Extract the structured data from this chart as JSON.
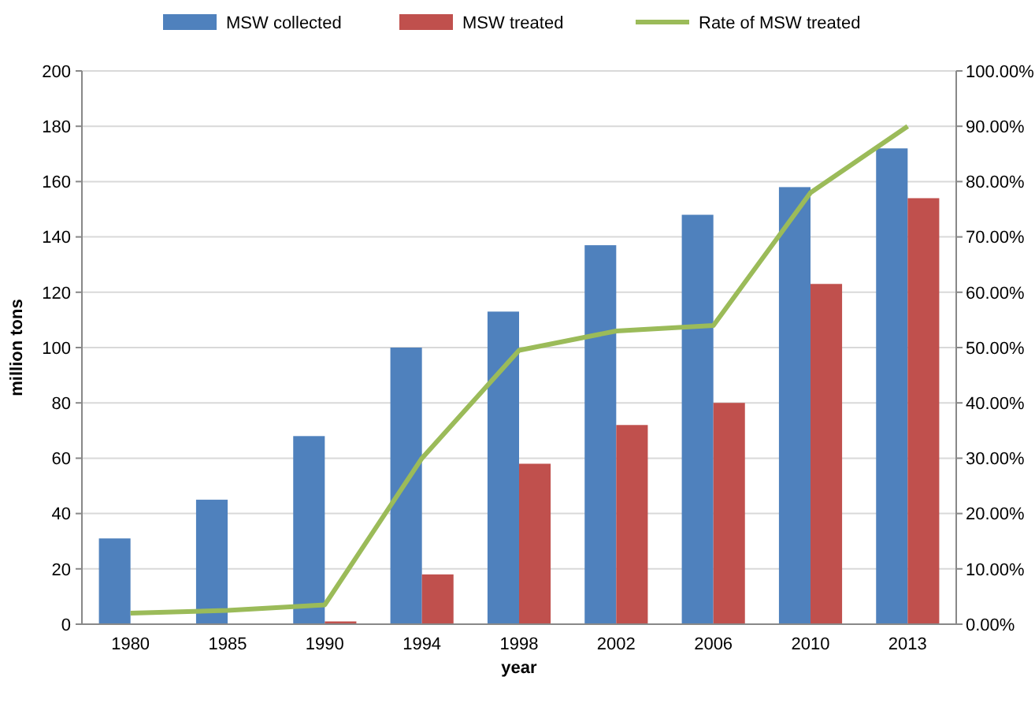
{
  "chart_data": {
    "type": "bar",
    "xlabel": "year",
    "ylabel": "million tons",
    "categories": [
      "1980",
      "1985",
      "1990",
      "1994",
      "1998",
      "2002",
      "2006",
      "2010",
      "2013"
    ],
    "series": [
      {
        "name": "MSW collected",
        "color": "#4f81bd",
        "values": [
          31,
          45,
          68,
          100,
          113,
          137,
          148,
          158,
          172
        ]
      },
      {
        "name": "MSW treated",
        "color": "#c0504d",
        "values": [
          null,
          null,
          1,
          18,
          58,
          72,
          80,
          123,
          154
        ]
      },
      {
        "name": "Rate of MSW treated",
        "type": "line",
        "axis": "y2",
        "color": "#9bbb59",
        "values": [
          2,
          2.5,
          3.5,
          30,
          49.5,
          53,
          54,
          78,
          90
        ]
      }
    ],
    "ylim": [
      0,
      200
    ],
    "yticks": [
      0,
      20,
      40,
      60,
      80,
      100,
      120,
      140,
      160,
      180,
      200
    ],
    "y2lim": [
      0,
      100
    ],
    "y2ticks": [
      {
        "value": 0,
        "label": "0.00%"
      },
      {
        "value": 10,
        "label": "10.00%"
      },
      {
        "value": 20,
        "label": "20.00%"
      },
      {
        "value": 30,
        "label": "30.00%"
      },
      {
        "value": 40,
        "label": "40.00%"
      },
      {
        "value": 50,
        "label": "50.00%"
      },
      {
        "value": 60,
        "label": "60.00%"
      },
      {
        "value": 70,
        "label": "70.00%"
      },
      {
        "value": 80,
        "label": "80.00%"
      },
      {
        "value": 90,
        "label": "90.00%"
      },
      {
        "value": 100,
        "label": "100.00%"
      }
    ],
    "grid": "y",
    "legend": "top",
    "marker": "none",
    "line_style": "solid"
  }
}
